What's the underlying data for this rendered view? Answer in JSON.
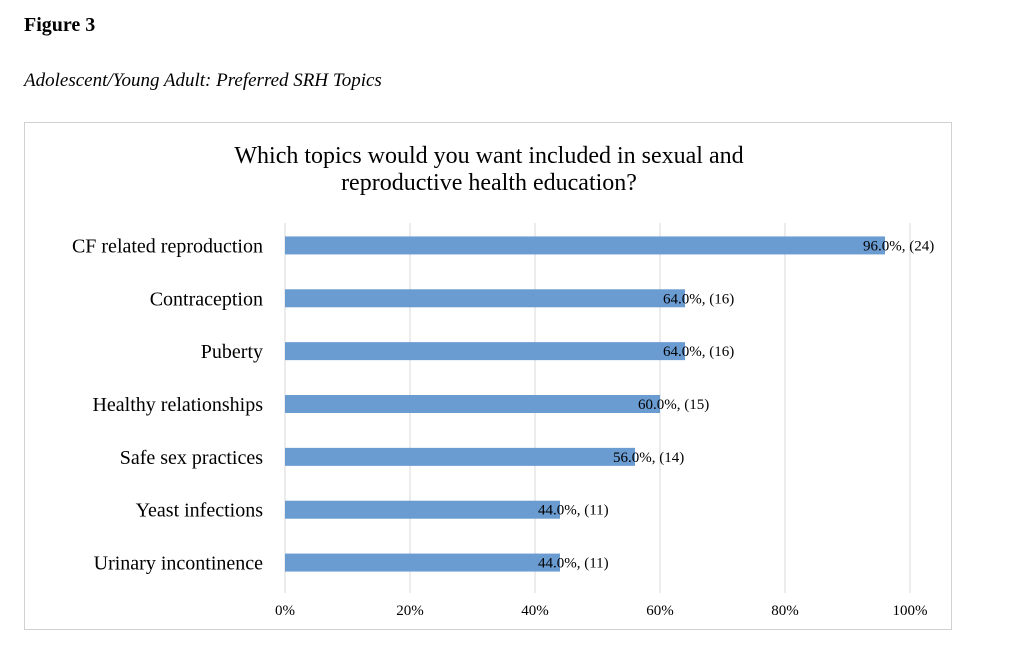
{
  "figure": {
    "label": "Figure 3",
    "caption": "Adolescent/Young Adult: Preferred SRH Topics"
  },
  "chart_data": {
    "type": "bar",
    "orientation": "horizontal",
    "title": [
      "Which topics would you want included in sexual and",
      "reproductive health education?"
    ],
    "categories": [
      "CF related reproduction",
      "Contraception",
      "Puberty",
      "Healthy relationships",
      "Safe sex practices",
      "Yeast infections",
      "Urinary incontinence"
    ],
    "values": [
      96.0,
      64.0,
      64.0,
      60.0,
      56.0,
      44.0,
      44.0
    ],
    "data_labels": [
      "96.0%, (24)",
      "64.0%, (16)",
      "64.0%, (16)",
      "60.0%, (15)",
      "56.0%, (14)",
      "44.0%, (11)",
      "44.0%, (11)"
    ],
    "xlim": [
      0,
      100
    ],
    "xticks": [
      0,
      20,
      40,
      60,
      80,
      100
    ],
    "xtick_labels": [
      "0%",
      "20%",
      "40%",
      "60%",
      "80%",
      "100%"
    ],
    "grid": "vertical",
    "legend": "none",
    "colors": {
      "bar": "#6a9bd1",
      "grid": "#d9d9d9"
    }
  }
}
